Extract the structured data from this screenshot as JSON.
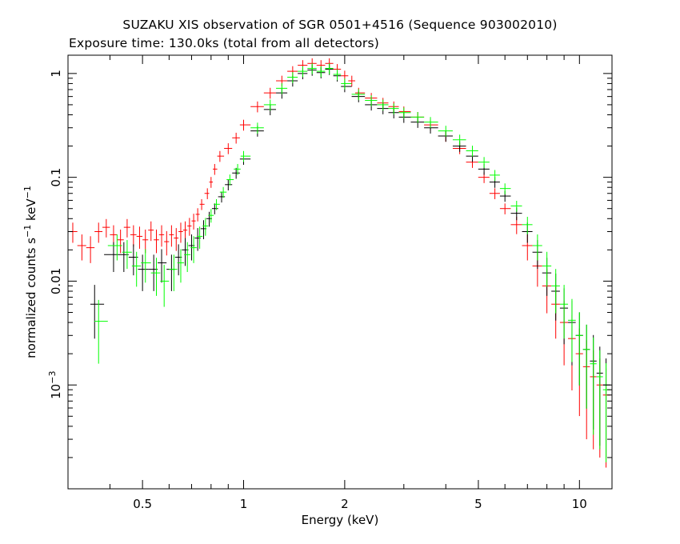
{
  "chart_data": {
    "type": "scatter",
    "title": "SUZAKU XIS observation of SGR 0501+4516 (Sequence 903002010)",
    "subtitle": "Exposure time: 130.0ks (total from all detectors)",
    "xlabel": "Energy (keV)",
    "ylabel": "normalized counts s",
    "ylabel_sup1": "−1",
    "ylabel_mid": " keV",
    "ylabel_sup2": "−1",
    "x_scale": "log",
    "y_scale": "log",
    "xlim": [
      0.3,
      12.5
    ],
    "ylim": [
      0.0001,
      1.5
    ],
    "x_ticks": [
      {
        "value": 0.5,
        "label": "0.5"
      },
      {
        "value": 1,
        "label": "1"
      },
      {
        "value": 2,
        "label": "2"
      },
      {
        "value": 5,
        "label": "5"
      },
      {
        "value": 10,
        "label": "10"
      }
    ],
    "y_ticks": [
      {
        "value": 1,
        "base": "1",
        "sup": ""
      },
      {
        "value": 0.1,
        "base": "0.1",
        "sup": ""
      },
      {
        "value": 0.01,
        "base": "0.01",
        "sup": ""
      },
      {
        "value": 0.001,
        "base": "10",
        "sup": "−3"
      }
    ],
    "series": [
      {
        "color": "#ff0000",
        "points": [
          [
            0.31,
            0.03
          ],
          [
            0.33,
            0.022
          ],
          [
            0.35,
            0.021
          ],
          [
            0.37,
            0.03
          ],
          [
            0.39,
            0.033
          ],
          [
            0.41,
            0.028
          ],
          [
            0.43,
            0.025
          ],
          [
            0.45,
            0.033
          ],
          [
            0.47,
            0.028
          ],
          [
            0.49,
            0.027
          ],
          [
            0.51,
            0.025
          ],
          [
            0.53,
            0.031
          ],
          [
            0.55,
            0.025
          ],
          [
            0.57,
            0.028
          ],
          [
            0.59,
            0.024
          ],
          [
            0.61,
            0.028
          ],
          [
            0.63,
            0.026
          ],
          [
            0.65,
            0.03
          ],
          [
            0.67,
            0.031
          ],
          [
            0.69,
            0.034
          ],
          [
            0.71,
            0.038
          ],
          [
            0.73,
            0.044
          ],
          [
            0.75,
            0.055
          ],
          [
            0.78,
            0.07
          ],
          [
            0.8,
            0.09
          ],
          [
            0.82,
            0.12
          ],
          [
            0.85,
            0.16
          ],
          [
            0.9,
            0.19
          ],
          [
            0.95,
            0.24
          ],
          [
            1.0,
            0.32
          ],
          [
            1.1,
            0.48
          ],
          [
            1.2,
            0.65
          ],
          [
            1.3,
            0.85
          ],
          [
            1.4,
            1.05
          ],
          [
            1.5,
            1.2
          ],
          [
            1.6,
            1.25
          ],
          [
            1.7,
            1.2
          ],
          [
            1.8,
            1.25
          ],
          [
            1.9,
            1.1
          ],
          [
            2.0,
            0.95
          ],
          [
            2.1,
            0.85
          ],
          [
            2.2,
            0.65
          ],
          [
            2.4,
            0.58
          ],
          [
            2.6,
            0.52
          ],
          [
            2.8,
            0.48
          ],
          [
            3.0,
            0.43
          ],
          [
            3.3,
            0.38
          ],
          [
            3.6,
            0.32
          ],
          [
            4.0,
            0.25
          ],
          [
            4.4,
            0.19
          ],
          [
            4.8,
            0.14
          ],
          [
            5.2,
            0.1
          ],
          [
            5.6,
            0.07
          ],
          [
            6.0,
            0.05
          ],
          [
            6.5,
            0.035
          ],
          [
            7.0,
            0.022
          ],
          [
            7.5,
            0.014
          ],
          [
            8.0,
            0.009
          ],
          [
            8.5,
            0.006
          ],
          [
            9.0,
            0.004
          ],
          [
            9.5,
            0.0028
          ],
          [
            10.0,
            0.002
          ],
          [
            10.5,
            0.0015
          ],
          [
            11.0,
            0.0012
          ],
          [
            11.5,
            0.001
          ],
          [
            12.0,
            0.0008
          ]
        ]
      },
      {
        "color": "#000000",
        "points": [
          [
            0.36,
            0.006
          ],
          [
            0.41,
            0.018
          ],
          [
            0.44,
            0.018
          ],
          [
            0.47,
            0.017
          ],
          [
            0.5,
            0.013
          ],
          [
            0.54,
            0.013
          ],
          [
            0.57,
            0.015
          ],
          [
            0.61,
            0.013
          ],
          [
            0.64,
            0.017
          ],
          [
            0.67,
            0.02
          ],
          [
            0.7,
            0.022
          ],
          [
            0.73,
            0.026
          ],
          [
            0.76,
            0.032
          ],
          [
            0.79,
            0.04
          ],
          [
            0.82,
            0.05
          ],
          [
            0.86,
            0.065
          ],
          [
            0.9,
            0.085
          ],
          [
            0.95,
            0.11
          ],
          [
            1.0,
            0.15
          ],
          [
            1.1,
            0.28
          ],
          [
            1.2,
            0.45
          ],
          [
            1.3,
            0.65
          ],
          [
            1.4,
            0.85
          ],
          [
            1.5,
            1.0
          ],
          [
            1.6,
            1.08
          ],
          [
            1.7,
            1.02
          ],
          [
            1.8,
            1.1
          ],
          [
            1.9,
            0.95
          ],
          [
            2.0,
            0.75
          ],
          [
            2.2,
            0.6
          ],
          [
            2.4,
            0.5
          ],
          [
            2.6,
            0.46
          ],
          [
            2.8,
            0.42
          ],
          [
            3.0,
            0.38
          ],
          [
            3.3,
            0.34
          ],
          [
            3.6,
            0.3
          ],
          [
            4.0,
            0.25
          ],
          [
            4.4,
            0.2
          ],
          [
            4.8,
            0.16
          ],
          [
            5.2,
            0.12
          ],
          [
            5.6,
            0.09
          ],
          [
            6.0,
            0.066
          ],
          [
            6.5,
            0.045
          ],
          [
            7.0,
            0.03
          ],
          [
            7.5,
            0.019
          ],
          [
            8.0,
            0.012
          ],
          [
            8.5,
            0.008
          ],
          [
            9.0,
            0.0055
          ],
          [
            9.5,
            0.004
          ],
          [
            10.0,
            0.003
          ],
          [
            10.5,
            0.0022
          ],
          [
            11.0,
            0.0017
          ],
          [
            11.5,
            0.0013
          ],
          [
            12.0,
            0.001
          ]
        ]
      },
      {
        "color": "#00ff00",
        "points": [
          [
            0.37,
            0.0041
          ],
          [
            0.42,
            0.022
          ],
          [
            0.45,
            0.019
          ],
          [
            0.48,
            0.014
          ],
          [
            0.51,
            0.015
          ],
          [
            0.55,
            0.012
          ],
          [
            0.58,
            0.01
          ],
          [
            0.62,
            0.013
          ],
          [
            0.65,
            0.015
          ],
          [
            0.68,
            0.018
          ],
          [
            0.71,
            0.021
          ],
          [
            0.74,
            0.027
          ],
          [
            0.77,
            0.034
          ],
          [
            0.8,
            0.043
          ],
          [
            0.83,
            0.055
          ],
          [
            0.87,
            0.072
          ],
          [
            0.91,
            0.095
          ],
          [
            0.96,
            0.12
          ],
          [
            1.0,
            0.16
          ],
          [
            1.1,
            0.3
          ],
          [
            1.2,
            0.5
          ],
          [
            1.3,
            0.72
          ],
          [
            1.4,
            0.92
          ],
          [
            1.5,
            1.05
          ],
          [
            1.6,
            1.12
          ],
          [
            1.7,
            1.05
          ],
          [
            1.8,
            1.12
          ],
          [
            1.9,
            0.98
          ],
          [
            2.0,
            0.8
          ],
          [
            2.2,
            0.63
          ],
          [
            2.4,
            0.55
          ],
          [
            2.6,
            0.5
          ],
          [
            2.8,
            0.46
          ],
          [
            3.0,
            0.42
          ],
          [
            3.3,
            0.38
          ],
          [
            3.6,
            0.34
          ],
          [
            4.0,
            0.28
          ],
          [
            4.4,
            0.23
          ],
          [
            4.8,
            0.18
          ],
          [
            5.2,
            0.14
          ],
          [
            5.6,
            0.105
          ],
          [
            6.0,
            0.078
          ],
          [
            6.5,
            0.053
          ],
          [
            7.0,
            0.035
          ],
          [
            7.5,
            0.022
          ],
          [
            8.0,
            0.014
          ],
          [
            8.5,
            0.009
          ],
          [
            9.0,
            0.006
          ],
          [
            9.5,
            0.0042
          ],
          [
            10.0,
            0.003
          ],
          [
            10.5,
            0.0022
          ],
          [
            11.0,
            0.0016
          ],
          [
            11.5,
            0.0012
          ],
          [
            12.0,
            0.0009
          ]
        ]
      }
    ]
  }
}
